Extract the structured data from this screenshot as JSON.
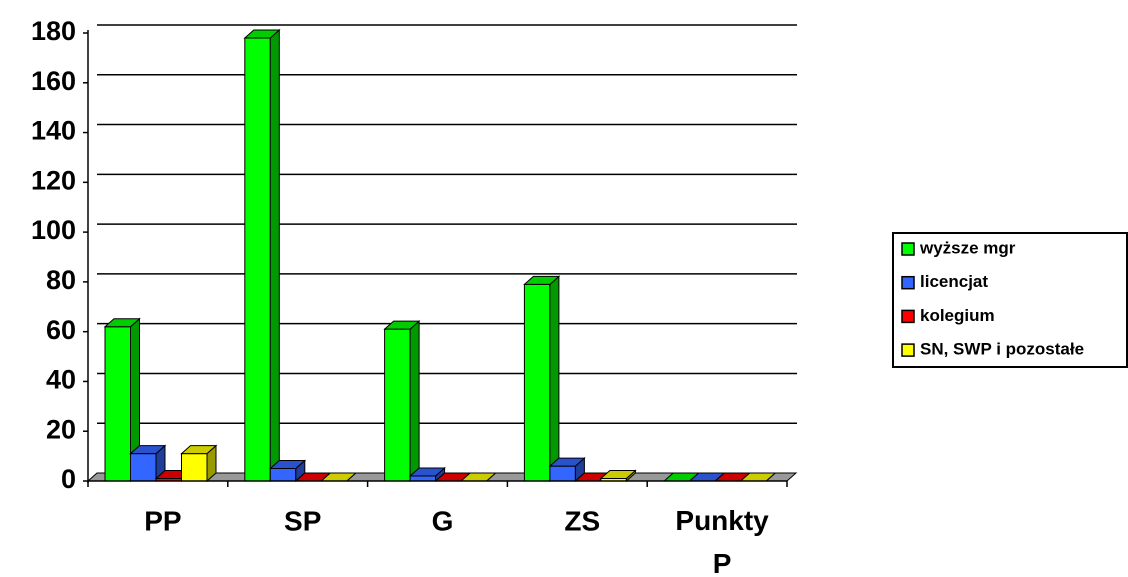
{
  "chart_data": {
    "type": "bar3d",
    "categories": [
      "PP",
      "SP",
      "G",
      "ZS",
      "Punkty P"
    ],
    "series": [
      {
        "name": "wyższe mgr",
        "color": "#00ff00",
        "values": [
          62,
          178,
          61,
          79,
          0
        ]
      },
      {
        "name": "licencjat",
        "color": "#3366ff",
        "values": [
          11,
          5,
          2,
          6,
          0
        ]
      },
      {
        "name": "kolegium",
        "color": "#ff0000",
        "values": [
          1,
          0,
          0,
          0,
          0
        ]
      },
      {
        "name": "SN, SWP i pozostałe",
        "color": "#ffff00",
        "values": [
          11,
          0,
          0,
          1,
          0
        ]
      }
    ],
    "ylim": [
      0,
      180
    ],
    "yticks": [
      0,
      20,
      40,
      60,
      80,
      100,
      120,
      140,
      160,
      180
    ],
    "grid": true,
    "legend": "right"
  }
}
